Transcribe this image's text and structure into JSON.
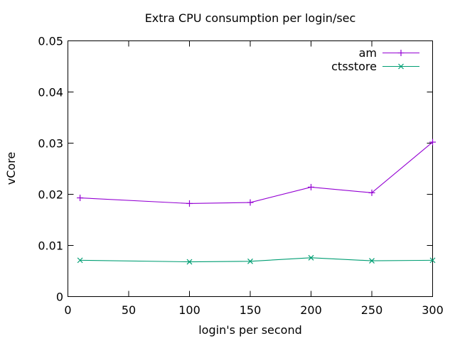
{
  "chart_data": {
    "type": "line",
    "title": "Extra CPU consumption per login/sec",
    "xlabel": "login's per second",
    "ylabel": "vCore",
    "xlim": [
      0,
      300
    ],
    "ylim": [
      0,
      0.05
    ],
    "xticks": [
      0,
      50,
      100,
      150,
      200,
      250,
      300
    ],
    "xtick_labels": [
      "0",
      "50",
      "100",
      "150",
      "200",
      "250",
      "300"
    ],
    "yticks": [
      0,
      0.01,
      0.02,
      0.03,
      0.04,
      0.05
    ],
    "ytick_labels": [
      "0",
      "0.01",
      "0.02",
      "0.03",
      "0.04",
      "0.05"
    ],
    "grid": false,
    "legend_position": "top-right-inside",
    "x": [
      10,
      100,
      150,
      200,
      250,
      300
    ],
    "series": [
      {
        "name": "am",
        "color": "#9400d3",
        "marker": "plus",
        "values": [
          0.0193,
          0.0182,
          0.0184,
          0.0214,
          0.0203,
          0.0302
        ]
      },
      {
        "name": "ctsstore",
        "color": "#009e73",
        "marker": "cross",
        "values": [
          0.0071,
          0.0068,
          0.0069,
          0.0076,
          0.007,
          0.0071
        ]
      }
    ]
  },
  "colors": {
    "background": "#ffffff",
    "axis": "#000000",
    "text": "#000000"
  }
}
